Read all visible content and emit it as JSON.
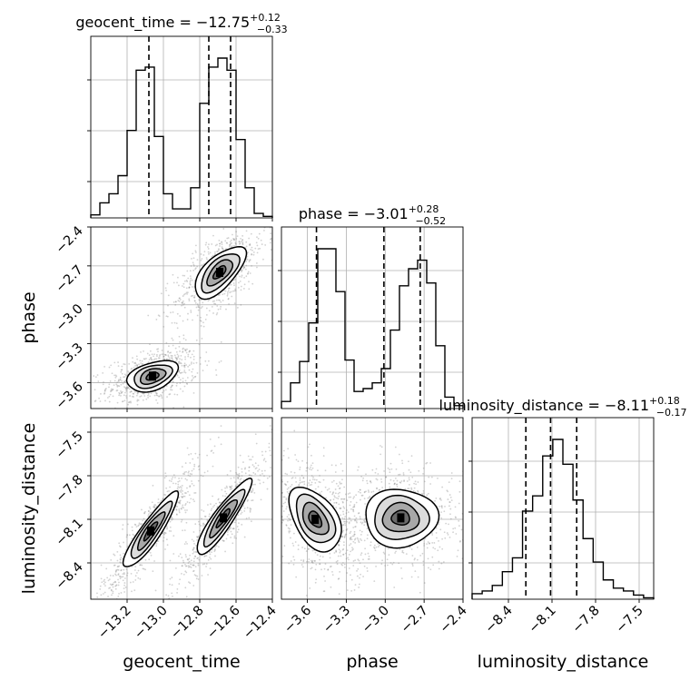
{
  "chart_data": {
    "type": "corner",
    "parameters": [
      "geocent_time",
      "phase",
      "luminosity_distance"
    ],
    "titles": [
      {
        "name": "geocent_time",
        "value": "−12.75",
        "plus": "+0.12",
        "minus": "−0.33"
      },
      {
        "name": "phase",
        "value": "−3.01",
        "plus": "+0.28",
        "minus": "−0.52"
      },
      {
        "name": "luminosity_distance",
        "value": "−8.11",
        "plus": "+0.18",
        "minus": "−0.17"
      }
    ],
    "ranges": [
      [
        -13.4,
        -12.4
      ],
      [
        -3.8,
        -2.4
      ],
      [
        -8.65,
        -7.4
      ]
    ],
    "ticks": [
      [
        -13.2,
        -13.0,
        -12.8,
        -12.6,
        -12.4
      ],
      [
        -3.6,
        -3.3,
        -3.0,
        -2.7,
        -2.4
      ],
      [
        -8.4,
        -8.1,
        -7.8,
        -7.5
      ]
    ],
    "tick_labels": [
      [
        "−13.2",
        "−13.0",
        "−12.8",
        "−12.6",
        "−12.4"
      ],
      [
        "−3.6",
        "−3.3",
        "−3.0",
        "−2.7",
        "−2.4"
      ],
      [
        "−8.4",
        "−8.1",
        "−7.8",
        "−7.5"
      ]
    ],
    "quantiles": [
      [
        -13.08,
        -12.75,
        -12.63
      ],
      [
        -3.53,
        -3.01,
        -2.73
      ],
      [
        -8.28,
        -8.11,
        -7.93
      ]
    ],
    "histograms": [
      {
        "parameter": "geocent_time",
        "bin_edges_range": [
          -13.4,
          -12.4
        ],
        "counts": [
          2,
          10,
          16,
          28,
          58,
          98,
          100,
          54,
          16,
          6,
          6,
          20,
          76,
          100,
          106,
          98,
          52,
          20,
          3,
          1
        ]
      },
      {
        "parameter": "phase",
        "bin_edges_range": [
          -3.8,
          -2.4
        ],
        "counts": [
          5,
          18,
          33,
          60,
          112,
          112,
          82,
          34,
          12,
          14,
          18,
          28,
          55,
          86,
          98,
          104,
          88,
          44,
          8,
          2
        ]
      },
      {
        "parameter": "luminosity_distance",
        "bin_edges_range": [
          -8.65,
          -7.4
        ],
        "counts": [
          4,
          6,
          10,
          20,
          30,
          64,
          75,
          104,
          116,
          98,
          72,
          44,
          27,
          14,
          8,
          6,
          3,
          1
        ]
      }
    ],
    "modes_2d": [
      {
        "x": "geocent_time",
        "y": "phase",
        "centers": [
          [
            -13.06,
            -3.55
          ],
          [
            -12.69,
            -2.75
          ]
        ],
        "spreads": [
          [
            0.07,
            0.06
          ],
          [
            0.07,
            0.1
          ]
        ],
        "correlation": [
          0.4,
          0.65
        ]
      },
      {
        "x": "geocent_time",
        "y": "luminosity_distance",
        "centers": [
          [
            -13.07,
            -8.18
          ],
          [
            -12.67,
            -8.09
          ]
        ],
        "spreads": [
          [
            0.075,
            0.13
          ],
          [
            0.075,
            0.13
          ]
        ],
        "correlation": [
          0.9,
          0.9
        ]
      },
      {
        "x": "phase",
        "y": "luminosity_distance",
        "centers": [
          [
            -3.54,
            -8.1
          ],
          [
            -2.88,
            -8.09
          ]
        ],
        "spreads": [
          [
            0.1,
            0.11
          ],
          [
            0.14,
            0.1
          ]
        ],
        "correlation": [
          -0.45,
          0.0
        ]
      }
    ],
    "contour_levels": [
      "0.5",
      "1.0",
      "1.5",
      "2.0 sigma"
    ],
    "grid": true,
    "colors": {
      "line": "#000000",
      "scatter": "#7f7f7f",
      "grid": "#b0b0b0",
      "density_dark": "#000000",
      "density_light": "#ffffff"
    }
  }
}
